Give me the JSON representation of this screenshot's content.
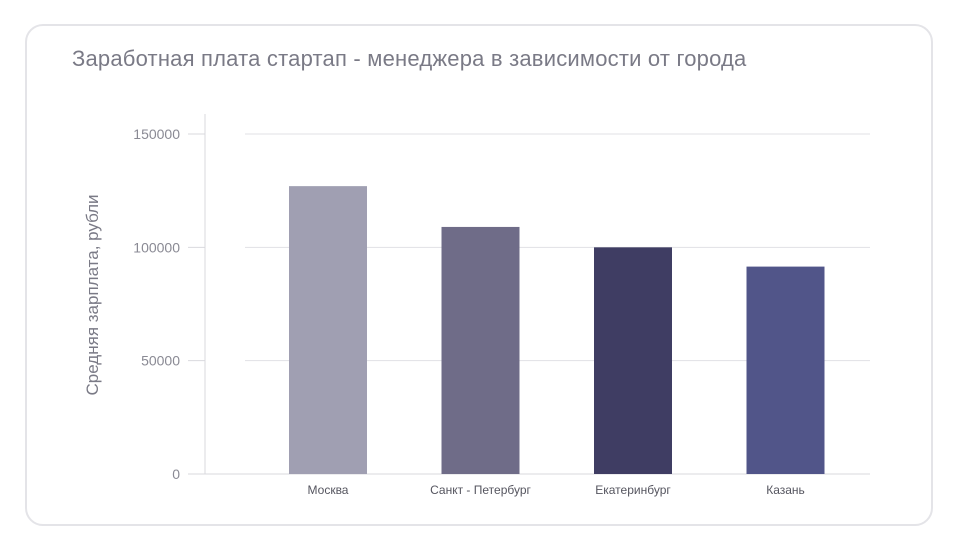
{
  "chart_data": {
    "type": "bar",
    "title": "Заработная плата стартап - менеджера в зависимости от города",
    "xlabel": "",
    "ylabel": "Средняя зарплата, рубли",
    "categories": [
      "Москва",
      "Санкт - Петербург",
      "Екатеринбург",
      "Казань"
    ],
    "values": [
      127000,
      109000,
      100000,
      91500
    ],
    "ylim": [
      0,
      150000
    ],
    "yticks": [
      0,
      50000,
      100000,
      150000
    ],
    "ytick_labels": [
      "0",
      "50000",
      "100000",
      "150000"
    ],
    "grid": true,
    "colors": [
      "#a09fb2",
      "#6f6c88",
      "#3f3d63",
      "#515589"
    ]
  }
}
